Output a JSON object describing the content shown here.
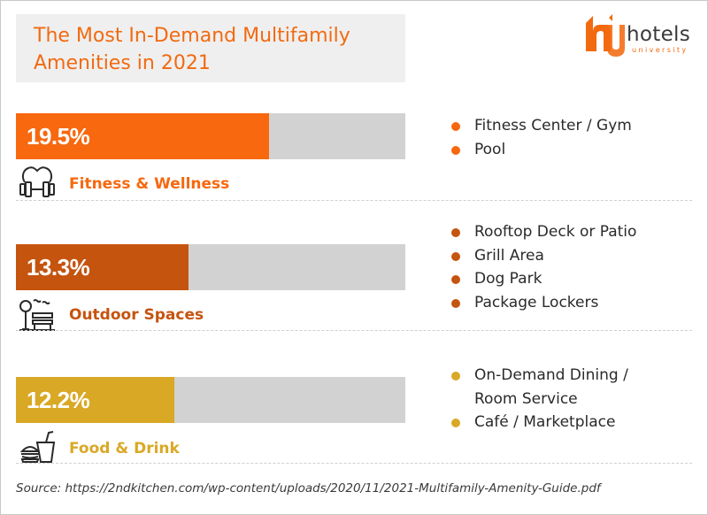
{
  "title": "The Most In-Demand Multifamily Amenities in 2021",
  "logo": {
    "word": "hotels",
    "sub": "university"
  },
  "chart_data": {
    "type": "bar",
    "orientation": "horizontal",
    "xlim": [
      0,
      30
    ],
    "categories": [
      "Fitness & Wellness",
      "Outdoor Spaces",
      "Food & Drink"
    ],
    "values": [
      19.5,
      13.3,
      12.2
    ],
    "value_labels": [
      "19.5%",
      "13.3%",
      "12.2%"
    ],
    "colors": [
      "#f7680f",
      "#c5540f",
      "#d9a825"
    ]
  },
  "sections": [
    {
      "label": "Fitness & Wellness",
      "icon": "fitness-icon",
      "color": "#f7680f",
      "items": [
        "Fitness Center / Gym",
        "Pool"
      ]
    },
    {
      "label": "Outdoor Spaces",
      "icon": "outdoor-icon",
      "color": "#c5540f",
      "items": [
        "Rooftop Deck or Patio",
        "Grill Area",
        "Dog Park",
        "Package Lockers"
      ]
    },
    {
      "label": "Food & Drink",
      "icon": "food-icon",
      "color": "#d9a825",
      "items": [
        "On-Demand Dining / Room Service",
        "Café / Marketplace"
      ]
    }
  ],
  "source": "Source: https://2ndkitchen.com/wp-content/uploads/2020/11/2021-Multifamily-Amenity-Guide.pdf"
}
